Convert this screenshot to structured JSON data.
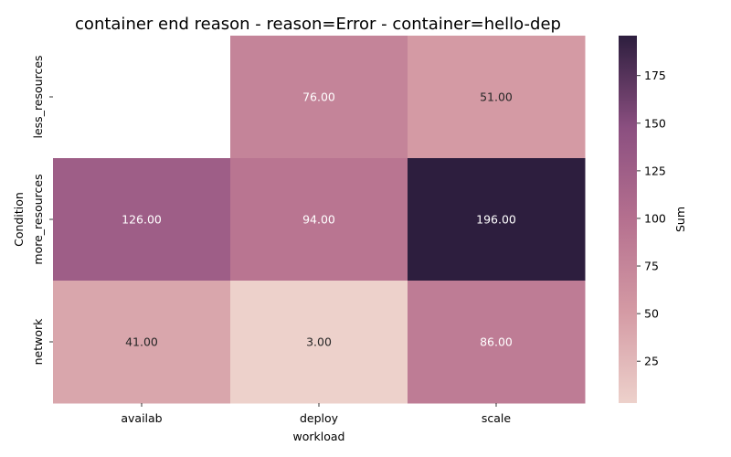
{
  "chart_data": {
    "type": "heatmap",
    "title": "container end reason - reason=Error - container=hello-dep",
    "xlabel": "workload",
    "ylabel": "Condition",
    "x_categories": [
      "availab",
      "deploy",
      "scale"
    ],
    "y_categories": [
      "less_resources",
      "more_resources",
      "network"
    ],
    "values": [
      [
        null,
        76.0,
        51.0
      ],
      [
        126.0,
        94.0,
        196.0
      ],
      [
        41.0,
        3.0,
        86.0
      ]
    ],
    "value_labels": [
      [
        "",
        "76.00",
        "51.00"
      ],
      [
        "126.00",
        "94.00",
        "196.00"
      ],
      [
        "41.00",
        "3.00",
        "86.00"
      ]
    ],
    "colorbar": {
      "label": "Sum",
      "range": [
        3,
        196
      ],
      "ticks": [
        25,
        50,
        75,
        100,
        125,
        150,
        175
      ],
      "tick_labels": [
        "25",
        "50",
        "75",
        "100",
        "125",
        "150",
        "175"
      ]
    },
    "colors": {
      "low": "#edd1cb",
      "mid_low": "#d49aa4",
      "mid": "#b5708f",
      "mid_high": "#8b4f80",
      "high": "#2d1e3e"
    }
  }
}
